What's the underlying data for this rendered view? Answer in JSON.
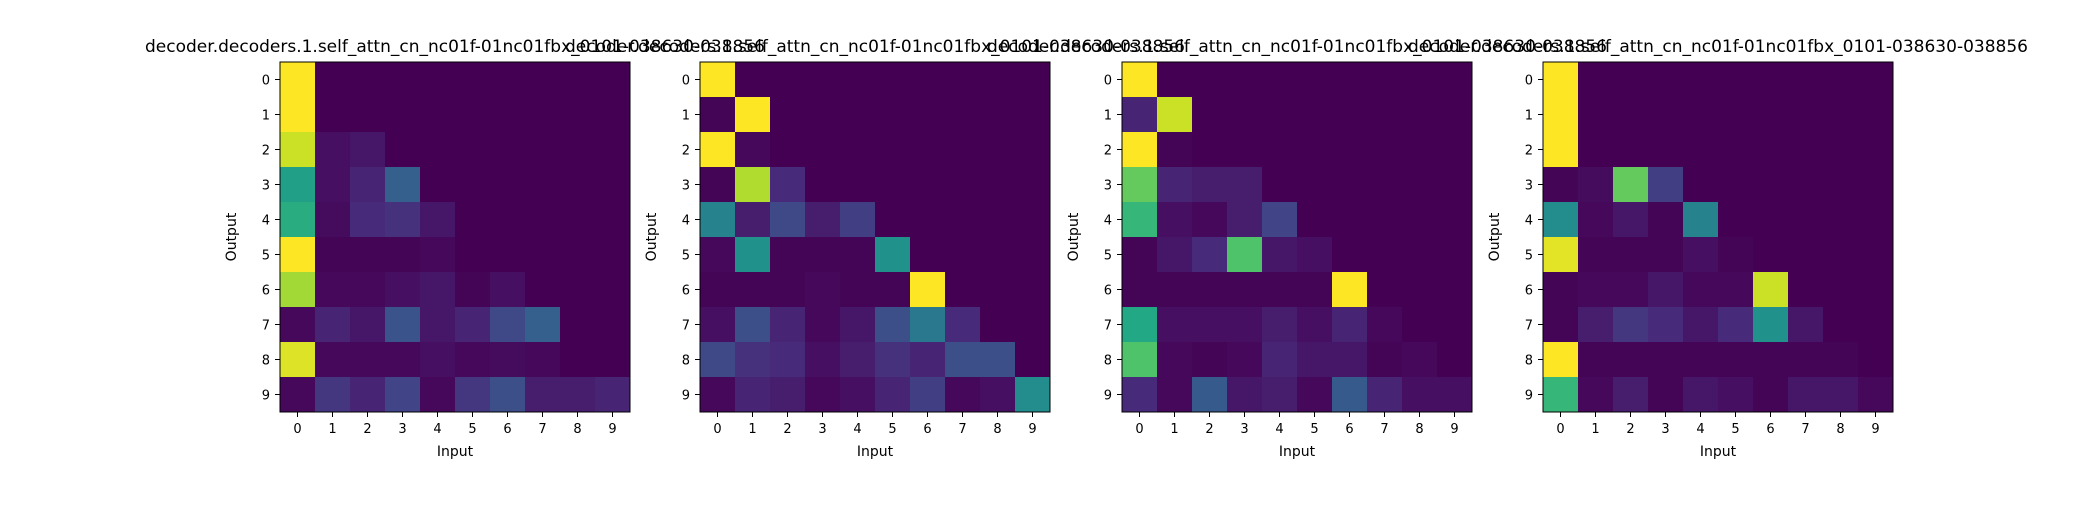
{
  "chart_data": [
    {
      "type": "heatmap",
      "title": "decoder.decoders.1.self_attn_cn_nc01f-01nc01fbx_0101-038630-038856",
      "xlabel": "Input",
      "ylabel": "Output",
      "x_ticks": [
        "0",
        "1",
        "2",
        "3",
        "4",
        "5",
        "6",
        "7",
        "8",
        "9"
      ],
      "y_ticks": [
        "0",
        "1",
        "2",
        "3",
        "4",
        "5",
        "6",
        "7",
        "8",
        "9"
      ],
      "colormap": "viridis",
      "vmin": 0,
      "vmax": 1,
      "values": [
        [
          1.0,
          0,
          0,
          0,
          0,
          0,
          0,
          0,
          0,
          0
        ],
        [
          1.0,
          0,
          0,
          0,
          0,
          0,
          0,
          0,
          0,
          0
        ],
        [
          0.92,
          0.04,
          0.06,
          0,
          0,
          0,
          0,
          0,
          0,
          0
        ],
        [
          0.56,
          0.04,
          0.1,
          0.3,
          0,
          0,
          0,
          0,
          0,
          0
        ],
        [
          0.62,
          0.03,
          0.12,
          0.14,
          0.06,
          0,
          0,
          0,
          0,
          0
        ],
        [
          1.0,
          0.01,
          0.01,
          0.01,
          0.02,
          0,
          0,
          0,
          0,
          0
        ],
        [
          0.86,
          0.02,
          0.02,
          0.04,
          0.06,
          0.01,
          0.04,
          0,
          0,
          0
        ],
        [
          0.02,
          0.1,
          0.06,
          0.26,
          0.06,
          0.1,
          0.22,
          0.3,
          0,
          0
        ],
        [
          0.95,
          0.02,
          0.02,
          0.02,
          0.04,
          0.02,
          0.03,
          0.02,
          0,
          0
        ],
        [
          0.02,
          0.16,
          0.1,
          0.2,
          0.02,
          0.16,
          0.24,
          0.08,
          0.08,
          0.1
        ]
      ]
    },
    {
      "type": "heatmap",
      "title": "decoder.decoders.1.self_attn_cn_nc01f-01nc01fbx_0101-038630-038856",
      "xlabel": "Input",
      "ylabel": "Output",
      "x_ticks": [
        "0",
        "1",
        "2",
        "3",
        "4",
        "5",
        "6",
        "7",
        "8",
        "9"
      ],
      "y_ticks": [
        "0",
        "1",
        "2",
        "3",
        "4",
        "5",
        "6",
        "7",
        "8",
        "9"
      ],
      "colormap": "viridis",
      "vmin": 0,
      "vmax": 1,
      "values": [
        [
          1.0,
          0,
          0,
          0,
          0,
          0,
          0,
          0,
          0,
          0
        ],
        [
          0.01,
          1.0,
          0,
          0,
          0,
          0,
          0,
          0,
          0,
          0
        ],
        [
          1.0,
          0.02,
          0,
          0,
          0,
          0,
          0,
          0,
          0,
          0
        ],
        [
          0.01,
          0.88,
          0.12,
          0,
          0,
          0,
          0,
          0,
          0,
          0
        ],
        [
          0.44,
          0.08,
          0.22,
          0.08,
          0.18,
          0,
          0,
          0,
          0,
          0
        ],
        [
          0.02,
          0.5,
          0.01,
          0.01,
          0.01,
          0.5,
          0,
          0,
          0,
          0
        ],
        [
          0.01,
          0.01,
          0.01,
          0.02,
          0.01,
          0.01,
          1.0,
          0,
          0,
          0
        ],
        [
          0.04,
          0.24,
          0.1,
          0.02,
          0.06,
          0.24,
          0.4,
          0.12,
          0,
          0
        ],
        [
          0.22,
          0.14,
          0.12,
          0.04,
          0.08,
          0.14,
          0.1,
          0.24,
          0.24,
          0
        ],
        [
          0.02,
          0.1,
          0.08,
          0.02,
          0.04,
          0.1,
          0.18,
          0.02,
          0.04,
          0.48
        ]
      ]
    },
    {
      "type": "heatmap",
      "title": "decoder.decoders.1.self_attn_cn_nc01f-01nc01fbx_0101-038630-038856",
      "xlabel": "Input",
      "ylabel": "Output",
      "x_ticks": [
        "0",
        "1",
        "2",
        "3",
        "4",
        "5",
        "6",
        "7",
        "8",
        "9"
      ],
      "y_ticks": [
        "0",
        "1",
        "2",
        "3",
        "4",
        "5",
        "6",
        "7",
        "8",
        "9"
      ],
      "colormap": "viridis",
      "vmin": 0,
      "vmax": 1,
      "values": [
        [
          1.0,
          0,
          0,
          0,
          0,
          0,
          0,
          0,
          0,
          0
        ],
        [
          0.1,
          0.92,
          0,
          0,
          0,
          0,
          0,
          0,
          0,
          0
        ],
        [
          1.0,
          0.01,
          0,
          0,
          0,
          0,
          0,
          0,
          0,
          0
        ],
        [
          0.76,
          0.1,
          0.08,
          0.08,
          0,
          0,
          0,
          0,
          0,
          0
        ],
        [
          0.66,
          0.04,
          0.02,
          0.08,
          0.2,
          0,
          0,
          0,
          0,
          0
        ],
        [
          0.01,
          0.06,
          0.12,
          0.72,
          0.06,
          0.04,
          0,
          0,
          0,
          0
        ],
        [
          0.01,
          0.01,
          0.01,
          0.01,
          0.01,
          0.01,
          1.0,
          0,
          0,
          0
        ],
        [
          0.6,
          0.04,
          0.04,
          0.04,
          0.08,
          0.04,
          0.1,
          0.02,
          0,
          0
        ],
        [
          0.72,
          0.02,
          0.01,
          0.02,
          0.1,
          0.06,
          0.06,
          0.01,
          0.02,
          0
        ],
        [
          0.12,
          0.02,
          0.28,
          0.06,
          0.08,
          0.02,
          0.28,
          0.1,
          0.04,
          0.04
        ]
      ]
    },
    {
      "type": "heatmap",
      "title": "decoder.decoders.1.self_attn_cn_nc01f-01nc01fbx_0101-038630-038856",
      "xlabel": "Input",
      "ylabel": "Output",
      "x_ticks": [
        "0",
        "1",
        "2",
        "3",
        "4",
        "5",
        "6",
        "7",
        "8",
        "9"
      ],
      "y_ticks": [
        "0",
        "1",
        "2",
        "3",
        "4",
        "5",
        "6",
        "7",
        "8",
        "9"
      ],
      "colormap": "viridis",
      "vmin": 0,
      "vmax": 1,
      "values": [
        [
          1.0,
          0,
          0,
          0,
          0,
          0,
          0,
          0,
          0,
          0
        ],
        [
          1.0,
          0,
          0,
          0,
          0,
          0,
          0,
          0,
          0,
          0
        ],
        [
          1.0,
          0,
          0,
          0,
          0,
          0,
          0,
          0,
          0,
          0
        ],
        [
          0.01,
          0.03,
          0.76,
          0.18,
          0,
          0,
          0,
          0,
          0,
          0
        ],
        [
          0.48,
          0.02,
          0.06,
          0.01,
          0.44,
          0,
          0,
          0,
          0,
          0
        ],
        [
          0.96,
          0.01,
          0.01,
          0.01,
          0.04,
          0.01,
          0,
          0,
          0,
          0
        ],
        [
          0.01,
          0.02,
          0.02,
          0.06,
          0.02,
          0.02,
          0.92,
          0,
          0,
          0
        ],
        [
          0.01,
          0.08,
          0.16,
          0.12,
          0.06,
          0.12,
          0.5,
          0.06,
          0,
          0
        ],
        [
          1.0,
          0.01,
          0.01,
          0.01,
          0.01,
          0.01,
          0.01,
          0.01,
          0.01,
          0
        ],
        [
          0.66,
          0.02,
          0.08,
          0.01,
          0.06,
          0.04,
          0.01,
          0.06,
          0.06,
          0.02
        ]
      ]
    }
  ]
}
